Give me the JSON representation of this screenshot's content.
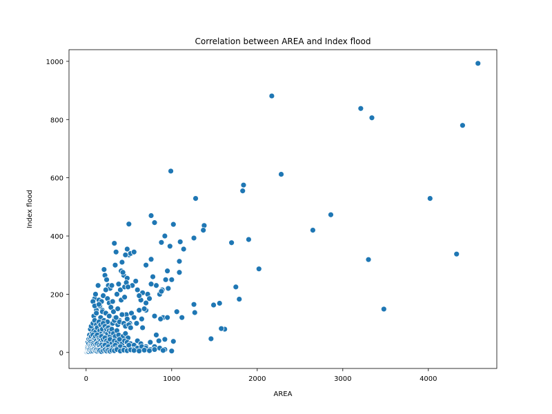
{
  "chart_data": {
    "type": "scatter",
    "title": "Correlation between AREA and Index flood",
    "xlabel": "AREA",
    "ylabel": "Index flood",
    "xlim": [
      -200,
      4800
    ],
    "ylim": [
      -55,
      1040
    ],
    "xticks": [
      0,
      1000,
      2000,
      3000,
      4000
    ],
    "yticks": [
      0,
      200,
      400,
      600,
      800,
      1000
    ],
    "grid": false,
    "legend": "none",
    "marker_color": "#1f77b4",
    "series": [
      {
        "x": [
          4580,
          2170,
          3210,
          3340,
          4400,
          990,
          2280,
          1840,
          1830,
          4020,
          1280,
          2860,
          2650,
          3300,
          4330,
          3480,
          500,
          760,
          800,
          1020,
          1380,
          1370,
          1900,
          1700,
          1260,
          1140,
          1100,
          920,
          880,
          760,
          1090,
          2020,
          1750,
          1560,
          1790,
          1490,
          1620,
          1580,
          1460,
          1260,
          1270,
          1020,
          1120,
          950,
          1000,
          1060,
          1090,
          820,
          700,
          760,
          780,
          860,
          890,
          930,
          960,
          980,
          640,
          660,
          700,
          720,
          740,
          800,
          820,
          850,
          900,
          920,
          950,
          870,
          880,
          700,
          660,
          330,
          350,
          360,
          480,
          500,
          520,
          560,
          420,
          440,
          460,
          480,
          540,
          580,
          600,
          620,
          210,
          220,
          240,
          260,
          280,
          300,
          340,
          360,
          380,
          400,
          410,
          430,
          450,
          470,
          490,
          100,
          110,
          120,
          140,
          150,
          160,
          170,
          180,
          190,
          200,
          230,
          250,
          270,
          290,
          310,
          320,
          340,
          370,
          390,
          410,
          430,
          450,
          470,
          510,
          530,
          560,
          590,
          620,
          650,
          680,
          80,
          90,
          100,
          120,
          130,
          150,
          170,
          190,
          210,
          230,
          250,
          270,
          290,
          310,
          330,
          350,
          370,
          390,
          420,
          440,
          460,
          480,
          500,
          520,
          40,
          50,
          60,
          70,
          80,
          90,
          100,
          110,
          120,
          130,
          140,
          150,
          160,
          170,
          180,
          190,
          200,
          210,
          220,
          230,
          240,
          250,
          260,
          270,
          280,
          290,
          300,
          320,
          340,
          360,
          380,
          400,
          430,
          460,
          490,
          20,
          30,
          40,
          50,
          60,
          70,
          80,
          90,
          100,
          110,
          120,
          130,
          140,
          150,
          160,
          170,
          180,
          190,
          200,
          220,
          240,
          260,
          280,
          300,
          330,
          360,
          390,
          420,
          450,
          480,
          520,
          560,
          600,
          640,
          700,
          750,
          5,
          10,
          15,
          20,
          25,
          30,
          35,
          40,
          45,
          50,
          55,
          60,
          65,
          70,
          75,
          80,
          85,
          90,
          95,
          100,
          110,
          120,
          130,
          140,
          150,
          160,
          170,
          180,
          190,
          200,
          220,
          240,
          260,
          280,
          300,
          320,
          340,
          360,
          380,
          400,
          450,
          500,
          550,
          600,
          650,
          700,
          750,
          800,
          860,
          920,
          5,
          10,
          15,
          20,
          25,
          30,
          35,
          40,
          50,
          60,
          70,
          80,
          90,
          100,
          110,
          120,
          130,
          140,
          150,
          160,
          180,
          200,
          220,
          240,
          260,
          280,
          300,
          330,
          360,
          400,
          440,
          480,
          520,
          560,
          620,
          680,
          740,
          800,
          900,
          1000
        ],
        "y": [
          993,
          881,
          838,
          806,
          780,
          623,
          612,
          575,
          555,
          529,
          529,
          473,
          420,
          319,
          338,
          149,
          441,
          470,
          446,
          440,
          436,
          420,
          388,
          377,
          393,
          355,
          380,
          400,
          378,
          320,
          313,
          287,
          225,
          169,
          183,
          163,
          80,
          82,
          47,
          165,
          137,
          38,
          120,
          280,
          250,
          140,
          275,
          230,
          300,
          235,
          260,
          200,
          215,
          250,
          220,
          365,
          180,
          205,
          170,
          200,
          185,
          125,
          60,
          40,
          120,
          45,
          120,
          115,
          210,
          145,
          85,
          375,
          345,
          200,
          355,
          335,
          340,
          345,
          310,
          265,
          335,
          255,
          230,
          245,
          215,
          195,
          285,
          265,
          250,
          230,
          220,
          230,
          300,
          200,
          235,
          215,
          280,
          275,
          225,
          240,
          225,
          185,
          200,
          145,
          230,
          180,
          160,
          110,
          175,
          145,
          195,
          215,
          185,
          170,
          155,
          175,
          140,
          120,
          150,
          110,
          180,
          130,
          190,
          130,
          100,
          135,
          120,
          100,
          145,
          115,
          150,
          175,
          125,
          160,
          135,
          95,
          165,
          120,
          140,
          110,
          135,
          105,
          125,
          90,
          100,
          110,
          120,
          95,
          105,
          130,
          100,
          90,
          115,
          95,
          85,
          60,
          80,
          90,
          65,
          100,
          75,
          110,
          70,
          95,
          85,
          60,
          105,
          75,
          95,
          65,
          80,
          100,
          60,
          90,
          70,
          80,
          65,
          85,
          75,
          55,
          70,
          80,
          65,
          55,
          75,
          60,
          45,
          55,
          65,
          50,
          35,
          45,
          40,
          50,
          55,
          40,
          60,
          45,
          50,
          55,
          40,
          60,
          35,
          50,
          45,
          40,
          55,
          35,
          45,
          50,
          40,
          35,
          45,
          30,
          40,
          35,
          45,
          30,
          40,
          35,
          30,
          25,
          40,
          30,
          20,
          35,
          5,
          10,
          15,
          20,
          25,
          30,
          20,
          15,
          25,
          35,
          20,
          30,
          25,
          15,
          20,
          30,
          25,
          10,
          20,
          15,
          25,
          20,
          30,
          15,
          25,
          20,
          10,
          25,
          15,
          20,
          25,
          15,
          20,
          10,
          15,
          20,
          25,
          15,
          10,
          20,
          15,
          25,
          10,
          15,
          20,
          15,
          10,
          20,
          15,
          10,
          2,
          4,
          6,
          8,
          5,
          3,
          7,
          9,
          6,
          4,
          8,
          5,
          10,
          7,
          6,
          9,
          4,
          8,
          5,
          7,
          3,
          6,
          9,
          5,
          8,
          4,
          7,
          6,
          10,
          5,
          8,
          6,
          9,
          7,
          5,
          8,
          6,
          10,
          7,
          5
        ]
      }
    ]
  }
}
